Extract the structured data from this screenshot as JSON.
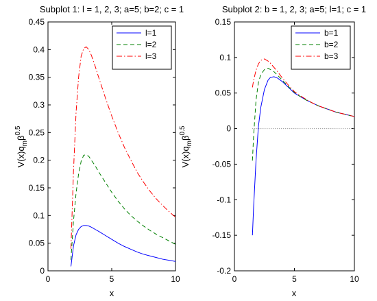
{
  "chart_data": [
    {
      "type": "line",
      "title": "Subplot 1: l = 1, 2, 3; a=5; b=2; c = 1",
      "xlabel": "x",
      "ylabel": {
        "base": "V(x)q",
        "sub": "m",
        "mid": "β",
        "sup": "0.5"
      },
      "xlim": [
        0,
        10
      ],
      "ylim": [
        0,
        0.45
      ],
      "xticks": [
        0,
        5,
        10
      ],
      "yticks": [
        0,
        0.05,
        0.1,
        0.15,
        0.2,
        0.25,
        0.3,
        0.35,
        0.4,
        0.45
      ],
      "legend_position": "top-right",
      "series": [
        {
          "name": "l=1",
          "color": "#0000ff",
          "dash": "solid",
          "x": [
            1.8,
            2.0,
            2.2,
            2.4,
            2.6,
            2.8,
            3.0,
            3.2,
            3.4,
            3.7,
            4.0,
            4.5,
            5.0,
            5.5,
            6.0,
            6.5,
            7.0,
            7.5,
            8.0,
            8.5,
            9.0,
            9.5,
            10.0
          ],
          "y": [
            0.008,
            0.045,
            0.065,
            0.075,
            0.08,
            0.082,
            0.082,
            0.081,
            0.079,
            0.075,
            0.071,
            0.064,
            0.057,
            0.05,
            0.044,
            0.039,
            0.034,
            0.03,
            0.027,
            0.024,
            0.021,
            0.019,
            0.017
          ]
        },
        {
          "name": "l=2",
          "color": "#008000",
          "dash": "dashed",
          "x": [
            1.8,
            2.0,
            2.2,
            2.4,
            2.6,
            2.8,
            3.0,
            3.2,
            3.4,
            3.7,
            4.0,
            4.5,
            5.0,
            5.5,
            6.0,
            6.5,
            7.0,
            7.5,
            8.0,
            8.5,
            9.0,
            9.5,
            10.0
          ],
          "y": [
            0.02,
            0.09,
            0.14,
            0.175,
            0.198,
            0.209,
            0.21,
            0.207,
            0.2,
            0.19,
            0.178,
            0.16,
            0.142,
            0.126,
            0.112,
            0.1,
            0.09,
            0.081,
            0.073,
            0.066,
            0.06,
            0.054,
            0.048
          ]
        },
        {
          "name": "l=3",
          "color": "#ff0000",
          "dash": "dashdot",
          "x": [
            1.8,
            2.0,
            2.2,
            2.4,
            2.6,
            2.8,
            3.0,
            3.2,
            3.4,
            3.7,
            4.0,
            4.5,
            5.0,
            5.5,
            6.0,
            6.5,
            7.0,
            7.5,
            8.0,
            8.5,
            9.0,
            9.5,
            10.0
          ],
          "y": [
            0.04,
            0.18,
            0.285,
            0.35,
            0.388,
            0.402,
            0.405,
            0.4,
            0.39,
            0.37,
            0.348,
            0.313,
            0.28,
            0.25,
            0.223,
            0.2,
            0.178,
            0.16,
            0.144,
            0.13,
            0.118,
            0.107,
            0.097
          ]
        }
      ]
    },
    {
      "type": "line",
      "title": "Subplot 2: b = 1, 2, 3; a=5; l=1; c = 1",
      "xlabel": "x",
      "ylabel": {
        "base": "V(x)q",
        "sub": "m",
        "mid": "β",
        "sup": "0.5"
      },
      "xlim": [
        0,
        10
      ],
      "ylim": [
        -0.2,
        0.15
      ],
      "xticks": [
        0,
        5,
        10
      ],
      "yticks": [
        -0.2,
        -0.15,
        -0.1,
        -0.05,
        0,
        0.05,
        0.1,
        0.15
      ],
      "legend_position": "top-right",
      "reference_line": {
        "y": 0,
        "x": [
          1.5,
          10
        ]
      },
      "series": [
        {
          "name": "b=1",
          "color": "#0000ff",
          "dash": "solid",
          "x": [
            1.5,
            1.6,
            1.8,
            2.0,
            2.2,
            2.5,
            2.8,
            3.0,
            3.3,
            3.6,
            4.0,
            4.5,
            5.0,
            5.5,
            6.0,
            6.5,
            7.0,
            7.5,
            8.0,
            8.5,
            9.0,
            9.5,
            10.0
          ],
          "y": [
            -0.15,
            -0.11,
            -0.045,
            0.003,
            0.03,
            0.055,
            0.068,
            0.072,
            0.073,
            0.071,
            0.066,
            0.058,
            0.05,
            0.045,
            0.04,
            0.036,
            0.032,
            0.029,
            0.026,
            0.023,
            0.021,
            0.019,
            0.017
          ]
        },
        {
          "name": "b=2",
          "color": "#008000",
          "dash": "dashed",
          "x": [
            1.5,
            1.6,
            1.8,
            2.0,
            2.2,
            2.5,
            2.8,
            3.0,
            3.3,
            3.6,
            4.0,
            4.5,
            5.0,
            5.5,
            6.0,
            6.5,
            7.0,
            7.5,
            8.0,
            8.5,
            9.0,
            9.5,
            10.0
          ],
          "y": [
            -0.045,
            -0.01,
            0.04,
            0.065,
            0.076,
            0.083,
            0.085,
            0.083,
            0.08,
            0.075,
            0.068,
            0.059,
            0.051,
            0.045,
            0.04,
            0.036,
            0.032,
            0.029,
            0.026,
            0.023,
            0.021,
            0.019,
            0.017
          ]
        },
        {
          "name": "b=3",
          "color": "#ff0000",
          "dash": "dashdot",
          "x": [
            1.5,
            1.6,
            1.8,
            2.0,
            2.2,
            2.5,
            2.8,
            3.0,
            3.3,
            3.6,
            4.0,
            4.5,
            5.0,
            5.5,
            6.0,
            6.5,
            7.0,
            7.5,
            8.0,
            8.5,
            9.0,
            9.5,
            10.0
          ],
          "y": [
            0.058,
            0.068,
            0.082,
            0.091,
            0.096,
            0.098,
            0.095,
            0.092,
            0.086,
            0.08,
            0.071,
            0.061,
            0.052,
            0.046,
            0.041,
            0.036,
            0.032,
            0.029,
            0.026,
            0.023,
            0.021,
            0.019,
            0.017
          ]
        }
      ]
    }
  ]
}
